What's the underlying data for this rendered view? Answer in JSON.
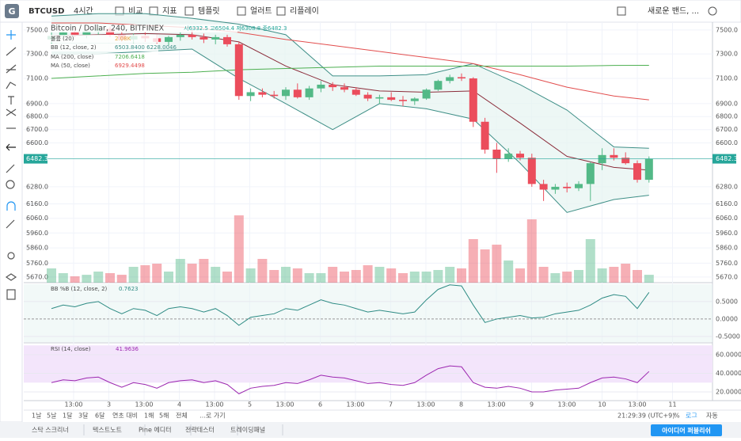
{
  "toolbar": {
    "symbol": "BTCUSD",
    "interval": "4시간",
    "buttons": [
      "비교",
      "지표",
      "템플릿",
      "얼러트",
      "리플레이"
    ],
    "layout": "새로운 밴드, ..."
  },
  "legend": {
    "title": "Bitcoin / Dollar, 240, BITFINEX",
    "ohlc": "시6332.5 고6504.4 저6308.8 종6482.3",
    "volume": "볼륨 (20)",
    "volume_value": "2.08K",
    "bb": "BB (12, close, 2)",
    "bb_value": "6503.8400  6228.0046",
    "ma200": "MA (200, close)",
    "ma200_value": "7206.6418",
    "ma50": "MA (50, close)",
    "ma50_value": "6929.4498"
  },
  "chart": {
    "ylim": [
      5634,
      7567
    ],
    "log": true,
    "yticks": [
      {
        "value": 7500,
        "label": "7500.0"
      },
      {
        "value": 7300,
        "label": "7300.0"
      },
      {
        "value": 7100,
        "label": "7100.0"
      },
      {
        "value": 6900,
        "label": "6900.0"
      },
      {
        "value": 6800,
        "label": "6800.0"
      },
      {
        "value": 6700,
        "label": "6700.0"
      },
      {
        "value": 6600,
        "label": "6600.0"
      },
      {
        "value": 6280,
        "label": "6280.0"
      },
      {
        "value": 6160,
        "label": "6160.0"
      },
      {
        "value": 6060,
        "label": "6060.0"
      },
      {
        "value": 5960,
        "label": "5960.0"
      },
      {
        "value": 5860,
        "label": "5860.0"
      },
      {
        "value": 5760,
        "label": "5760.0"
      },
      {
        "value": 5670,
        "label": "5670.0"
      }
    ],
    "last": 6482.3,
    "up_color": "#53b987",
    "down_color": "#eb4d5c",
    "candles": [
      [
        7420,
        7480,
        7380,
        7450
      ],
      [
        7450,
        7500,
        7420,
        7480
      ],
      [
        7480,
        7520,
        7440,
        7460
      ],
      [
        7460,
        7500,
        7430,
        7490
      ],
      [
        7490,
        7540,
        7460,
        7510
      ],
      [
        7510,
        7530,
        7440,
        7460
      ],
      [
        7460,
        7490,
        7400,
        7420
      ],
      [
        7420,
        7470,
        7390,
        7450
      ],
      [
        7450,
        7480,
        7400,
        7430
      ],
      [
        7430,
        7460,
        7380,
        7400
      ],
      [
        7400,
        7450,
        7370,
        7440
      ],
      [
        7440,
        7480,
        7410,
        7460
      ],
      [
        7460,
        7500,
        7420,
        7440
      ],
      [
        7440,
        7470,
        7390,
        7420
      ],
      [
        7420,
        7460,
        7380,
        7440
      ],
      [
        7440,
        7460,
        7360,
        7380
      ],
      [
        7380,
        7400,
        6930,
        6960
      ],
      [
        6960,
        7020,
        6920,
        6990
      ],
      [
        6990,
        7020,
        6950,
        6970
      ],
      [
        6970,
        7000,
        6940,
        6960
      ],
      [
        6960,
        7030,
        6930,
        7010
      ],
      [
        7010,
        7060,
        6940,
        6950
      ],
      [
        6950,
        7040,
        6930,
        7020
      ],
      [
        7020,
        7080,
        6990,
        7050
      ],
      [
        7050,
        7070,
        7000,
        7030
      ],
      [
        7030,
        7060,
        6990,
        7010
      ],
      [
        7010,
        7030,
        6960,
        6970
      ],
      [
        6970,
        6990,
        6920,
        6940
      ],
      [
        6940,
        6970,
        6900,
        6950
      ],
      [
        6950,
        6990,
        6920,
        6930
      ],
      [
        6930,
        6960,
        6880,
        6920
      ],
      [
        6920,
        6950,
        6890,
        6940
      ],
      [
        6940,
        7020,
        6930,
        7010
      ],
      [
        7010,
        7090,
        7000,
        7080
      ],
      [
        7080,
        7130,
        7060,
        7110
      ],
      [
        7110,
        7140,
        7080,
        7100
      ],
      [
        7100,
        7110,
        6720,
        6760
      ],
      [
        6760,
        6790,
        6520,
        6550
      ],
      [
        6550,
        6600,
        6380,
        6480
      ],
      [
        6480,
        6560,
        6460,
        6520
      ],
      [
        6520,
        6540,
        6470,
        6490
      ],
      [
        6490,
        6520,
        6280,
        6300
      ],
      [
        6300,
        6330,
        6180,
        6260
      ],
      [
        6260,
        6300,
        6230,
        6280
      ],
      [
        6280,
        6310,
        6240,
        6270
      ],
      [
        6270,
        6320,
        6250,
        6300
      ],
      [
        6300,
        6460,
        6180,
        6450
      ],
      [
        6450,
        6560,
        6400,
        6510
      ],
      [
        6510,
        6560,
        6470,
        6490
      ],
      [
        6490,
        6530,
        6440,
        6450
      ],
      [
        6450,
        6470,
        6310,
        6330
      ],
      [
        6330,
        6500,
        6310,
        6482.3
      ]
    ],
    "volume_lim": [
      0,
      100
    ],
    "volume": [
      18,
      12,
      8,
      10,
      14,
      12,
      10,
      20,
      22,
      24,
      14,
      30,
      24,
      30,
      20,
      14,
      85,
      18,
      30,
      16,
      20,
      18,
      12,
      12,
      20,
      14,
      16,
      22,
      20,
      18,
      12,
      14,
      14,
      16,
      20,
      18,
      55,
      42,
      48,
      28,
      18,
      80,
      20,
      12,
      14,
      16,
      55,
      18,
      20,
      24,
      16,
      10
    ],
    "lines_x": [
      0,
      4,
      8,
      12,
      16,
      20,
      24,
      28,
      32,
      36,
      40,
      44,
      48,
      51
    ],
    "bb_fill": "#e6f4f1",
    "lines": [
      {
        "color": "#3f8f87",
        "values": [
          7620,
          7640,
          7640,
          7600,
          7550,
          7460,
          7120,
          7120,
          7130,
          7220,
          7050,
          6850,
          6570,
          6560
        ]
      },
      {
        "color": "#8b2c3a",
        "values": [
          7450,
          7460,
          7470,
          7460,
          7400,
          7200,
          7050,
          7000,
          6990,
          7000,
          6750,
          6500,
          6420,
          6400
        ]
      },
      {
        "color": "#3f8f87",
        "values": [
          7300,
          7300,
          7320,
          7340,
          7100,
          6900,
          6700,
          6900,
          6860,
          6780,
          6450,
          6100,
          6190,
          6220
        ]
      },
      {
        "color": "#e24d4d",
        "values": [
          7560,
          7560,
          7540,
          7520,
          7480,
          7420,
          7370,
          7320,
          7270,
          7220,
          7130,
          7030,
          6960,
          6930
        ]
      },
      {
        "color": "#4caf50",
        "values": [
          7100,
          7120,
          7140,
          7150,
          7170,
          7180,
          7190,
          7200,
          7200,
          7200,
          7200,
          7200,
          7205,
          7206
        ]
      }
    ]
  },
  "bbpb": {
    "name": "BB %B (12, close, 2)",
    "value": "0.7623",
    "ylim": [
      -0.66,
      1.02
    ],
    "color": "#2e8b84",
    "yticks": [
      {
        "value": 0.5,
        "label": "0.5000"
      },
      {
        "value": 0,
        "label": "0.0000"
      },
      {
        "value": -0.5,
        "label": "-0.5000"
      }
    ],
    "values": [
      0.3,
      0.4,
      0.35,
      0.45,
      0.5,
      0.3,
      0.15,
      0.3,
      0.25,
      0.1,
      0.3,
      0.35,
      0.3,
      0.2,
      0.3,
      0.1,
      -0.18,
      0.05,
      0.1,
      0.15,
      0.3,
      0.25,
      0.4,
      0.55,
      0.45,
      0.4,
      0.3,
      0.2,
      0.25,
      0.2,
      0.15,
      0.2,
      0.55,
      0.85,
      0.98,
      0.95,
      0.4,
      -0.1,
      0,
      0.05,
      0.1,
      0.03,
      0.05,
      0.15,
      0.2,
      0.25,
      0.4,
      0.6,
      0.7,
      0.65,
      0.3,
      0.7623
    ]
  },
  "rsi": {
    "name": "RSI (14, close)",
    "value": "41.9636",
    "ylim": [
      11.5,
      71.9
    ],
    "band": [
      30,
      70
    ],
    "color": "#9c27b0",
    "yticks": [
      {
        "value": 60,
        "label": "60.0000"
      },
      {
        "value": 40,
        "label": "40.0000"
      },
      {
        "value": 20,
        "label": "20.0000"
      }
    ],
    "values": [
      30,
      33,
      32,
      35,
      36,
      30,
      25,
      30,
      28,
      24,
      30,
      32,
      33,
      30,
      32,
      28,
      18,
      24,
      26,
      27,
      30,
      29,
      33,
      38,
      36,
      35,
      32,
      29,
      30,
      28,
      27,
      30,
      38,
      45,
      48,
      47,
      30,
      25,
      24,
      26,
      24,
      20,
      20,
      22,
      23,
      24,
      30,
      35,
      36,
      34,
      30,
      41.9636
    ]
  },
  "time_labels": [
    "13:00",
    "3",
    "13:00",
    "4",
    "13:00",
    "5",
    "13:00",
    "6",
    "13:00",
    "7",
    "13:00",
    "8",
    "13:00",
    "9",
    "13:00",
    "10",
    "13:00",
    "11"
  ],
  "ranges": [
    "1날",
    "5날",
    "1달",
    "3달",
    "6달",
    "연초 대비",
    "1해",
    "5해",
    "전체",
    "…로 가기"
  ],
  "clock": "21:29:39 (UTC+9)",
  "scale_buttons": [
    "%",
    "로그",
    "자동"
  ],
  "footer": {
    "tabs": [
      "스탁 스크리너",
      "텍스트노트",
      "Pine 에디터",
      "전략테스터",
      "트레이딩패널"
    ],
    "publish": "아이디어 퍼블리쉬"
  }
}
